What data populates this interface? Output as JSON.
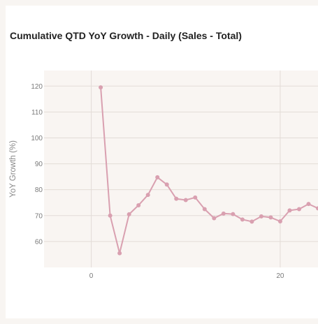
{
  "chart_data": {
    "type": "line",
    "title": "Cumulative QTD YoY Growth - Daily (Sales - Total)",
    "xlabel": "",
    "ylabel": "YoY Growth (%)",
    "xlim": [
      -5,
      24
    ],
    "ylim": [
      50,
      126
    ],
    "xticks": [
      0,
      20
    ],
    "yticks": [
      60,
      70,
      80,
      90,
      100,
      110,
      120
    ],
    "grid": true,
    "series": [
      {
        "color": "#d9a0b0",
        "x": [
          1,
          2,
          3,
          4,
          5,
          6,
          7,
          8,
          9,
          10,
          11,
          12,
          13,
          14,
          15,
          16,
          17,
          18,
          19,
          20,
          21,
          22,
          23,
          24
        ],
        "values": [
          119.5,
          70.0,
          55.5,
          70.5,
          74.0,
          78.0,
          84.8,
          82.0,
          76.5,
          76.0,
          77.0,
          72.5,
          69.0,
          70.8,
          70.6,
          68.5,
          67.7,
          69.7,
          69.3,
          67.8,
          72.0,
          72.5,
          74.5,
          72.8
        ]
      }
    ]
  }
}
